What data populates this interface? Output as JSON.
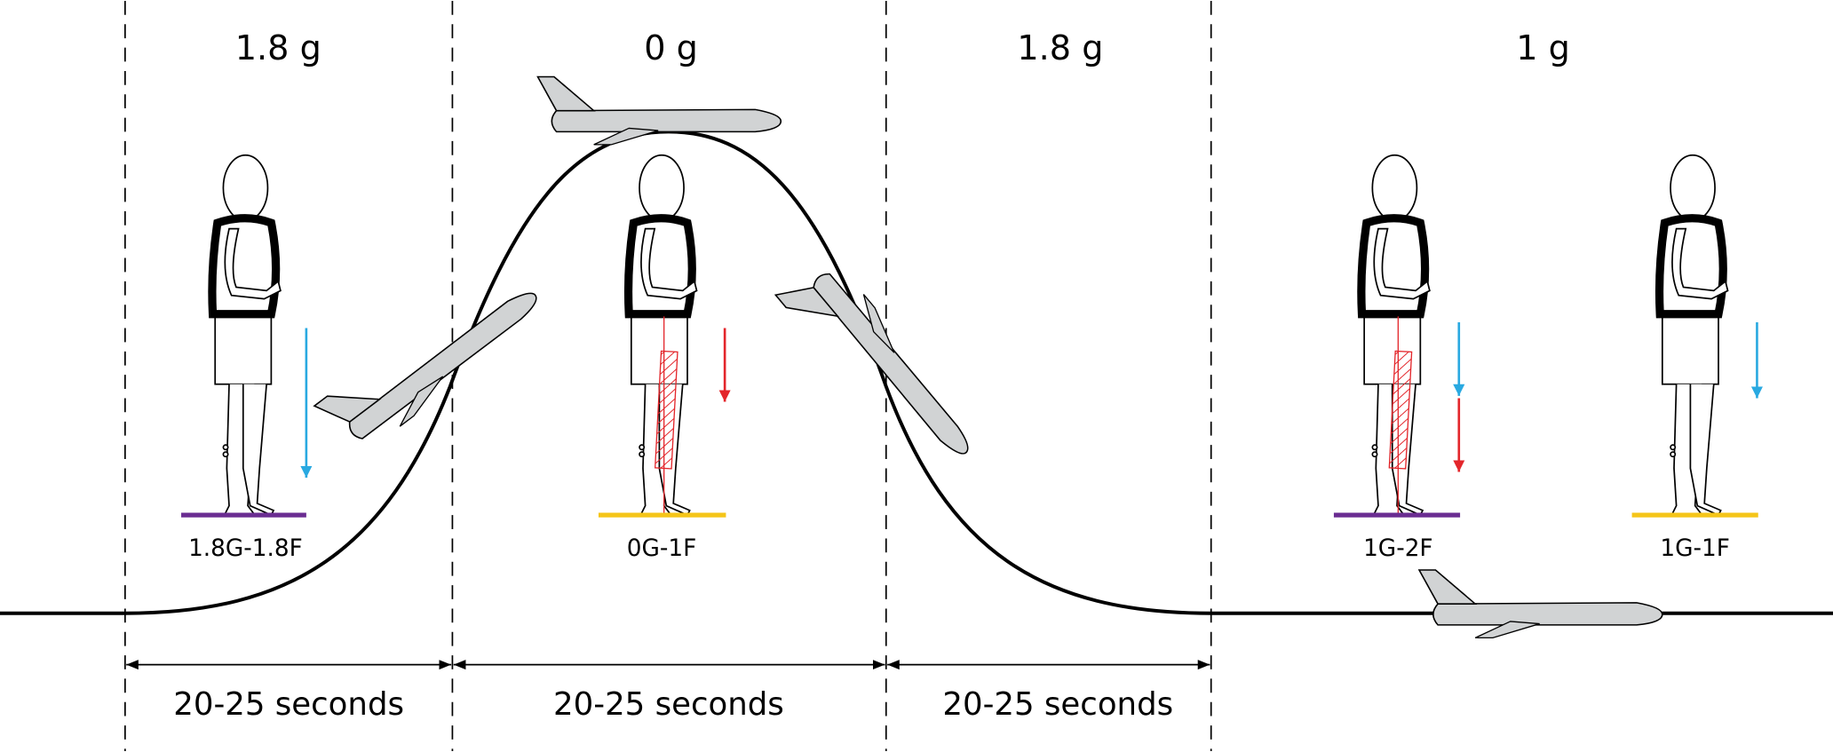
{
  "phase_labels": [
    "1.8 g",
    "0 g",
    "1.8 g",
    "1 g"
  ],
  "conditions": [
    "1.8G-1.8F",
    "0G-1F",
    "1G-2F",
    "1G-1F"
  ],
  "durations": [
    "20-25 seconds",
    "20-25 seconds",
    "20-25 seconds"
  ]
}
